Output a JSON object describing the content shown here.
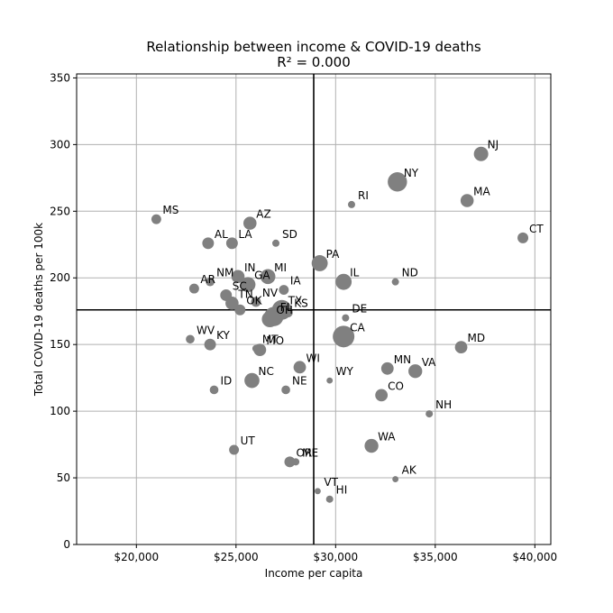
{
  "chart_data": {
    "type": "scatter",
    "title": "Relationship between income & COVID-19 deaths",
    "subtitle": "R² = 0.000",
    "xlabel": "Income per capita",
    "ylabel": "Total COVID-19 deaths per 100k",
    "xlim": [
      17000,
      40800
    ],
    "ylim": [
      0,
      353
    ],
    "x_ticks": [
      20000,
      25000,
      30000,
      35000,
      40000
    ],
    "x_tick_labels": [
      "$20,000",
      "$25,000",
      "$30,000",
      "$35,000",
      "$40,000"
    ],
    "y_ticks": [
      0,
      50,
      100,
      150,
      200,
      250,
      300,
      350
    ],
    "y_tick_labels": [
      "0",
      "50",
      "100",
      "150",
      "200",
      "250",
      "300",
      "350"
    ],
    "grid": true,
    "mean_lines": {
      "x": 28900,
      "y": 176
    },
    "marker_color": "#808080",
    "points": [
      {
        "label": "NJ",
        "x": 37300,
        "y": 293,
        "size": 9
      },
      {
        "label": "NY",
        "x": 33100,
        "y": 272,
        "size": 19
      },
      {
        "label": "MA",
        "x": 36600,
        "y": 258,
        "size": 7
      },
      {
        "label": "RI",
        "x": 30800,
        "y": 255,
        "size": 1
      },
      {
        "label": "MS",
        "x": 21000,
        "y": 244,
        "size": 3
      },
      {
        "label": "AZ",
        "x": 25700,
        "y": 241,
        "size": 7
      },
      {
        "label": "CT",
        "x": 39400,
        "y": 230,
        "size": 4
      },
      {
        "label": "AL",
        "x": 23600,
        "y": 226,
        "size": 5
      },
      {
        "label": "LA",
        "x": 24800,
        "y": 226,
        "size": 5
      },
      {
        "label": "SD",
        "x": 27000,
        "y": 226,
        "size": 1
      },
      {
        "label": "PA",
        "x": 29200,
        "y": 211,
        "size": 12
      },
      {
        "label": "IN",
        "x": 25100,
        "y": 201,
        "size": 7
      },
      {
        "label": "MI",
        "x": 26600,
        "y": 201,
        "size": 10
      },
      {
        "label": "IL",
        "x": 30400,
        "y": 197,
        "size": 12
      },
      {
        "label": "ND",
        "x": 33000,
        "y": 197,
        "size": 1
      },
      {
        "label": "GA",
        "x": 25600,
        "y": 195,
        "size": 10
      },
      {
        "label": "NM",
        "x": 23700,
        "y": 197,
        "size": 2
      },
      {
        "label": "AR",
        "x": 22900,
        "y": 192,
        "size": 3
      },
      {
        "label": "IA",
        "x": 27400,
        "y": 191,
        "size": 3
      },
      {
        "label": "SC",
        "x": 24500,
        "y": 187,
        "size": 5
      },
      {
        "label": "TN",
        "x": 24800,
        "y": 181,
        "size": 7
      },
      {
        "label": "NV",
        "x": 26000,
        "y": 182,
        "size": 3
      },
      {
        "label": "OK",
        "x": 25200,
        "y": 176,
        "size": 4
      },
      {
        "label": "TX",
        "x": 27300,
        "y": 176,
        "size": 20
      },
      {
        "label": "KS",
        "x": 27600,
        "y": 174,
        "size": 3
      },
      {
        "label": "FL",
        "x": 26900,
        "y": 171,
        "size": 19
      },
      {
        "label": "OH",
        "x": 26700,
        "y": 169,
        "size": 12
      },
      {
        "label": "DE",
        "x": 30500,
        "y": 170,
        "size": 1
      },
      {
        "label": "CA",
        "x": 30400,
        "y": 156,
        "size": 25
      },
      {
        "label": "WV",
        "x": 22700,
        "y": 154,
        "size": 2
      },
      {
        "label": "KY",
        "x": 23700,
        "y": 150,
        "size": 5
      },
      {
        "label": "MD",
        "x": 36300,
        "y": 148,
        "size": 6
      },
      {
        "label": "MT",
        "x": 26000,
        "y": 147,
        "size": 1
      },
      {
        "label": "MO",
        "x": 26200,
        "y": 146,
        "size": 6
      },
      {
        "label": "WI",
        "x": 28200,
        "y": 133,
        "size": 6
      },
      {
        "label": "MN",
        "x": 32600,
        "y": 132,
        "size": 6
      },
      {
        "label": "VA",
        "x": 34000,
        "y": 130,
        "size": 8
      },
      {
        "label": "WY",
        "x": 29700,
        "y": 123,
        "size": 0.5
      },
      {
        "label": "NC",
        "x": 25800,
        "y": 123,
        "size": 10
      },
      {
        "label": "ID",
        "x": 23900,
        "y": 116,
        "size": 2
      },
      {
        "label": "NE",
        "x": 27500,
        "y": 116,
        "size": 2
      },
      {
        "label": "CO",
        "x": 32300,
        "y": 112,
        "size": 6
      },
      {
        "label": "NH",
        "x": 34700,
        "y": 98,
        "size": 1
      },
      {
        "label": "WA",
        "x": 31800,
        "y": 74,
        "size": 8
      },
      {
        "label": "UT",
        "x": 24900,
        "y": 71,
        "size": 3
      },
      {
        "label": "OR",
        "x": 27700,
        "y": 62,
        "size": 4
      },
      {
        "label": "ME",
        "x": 28000,
        "y": 62,
        "size": 1
      },
      {
        "label": "AK",
        "x": 33000,
        "y": 49,
        "size": 0.5
      },
      {
        "label": "VT",
        "x": 29100,
        "y": 40,
        "size": 0.5
      },
      {
        "label": "HI",
        "x": 29700,
        "y": 34,
        "size": 1
      }
    ]
  }
}
